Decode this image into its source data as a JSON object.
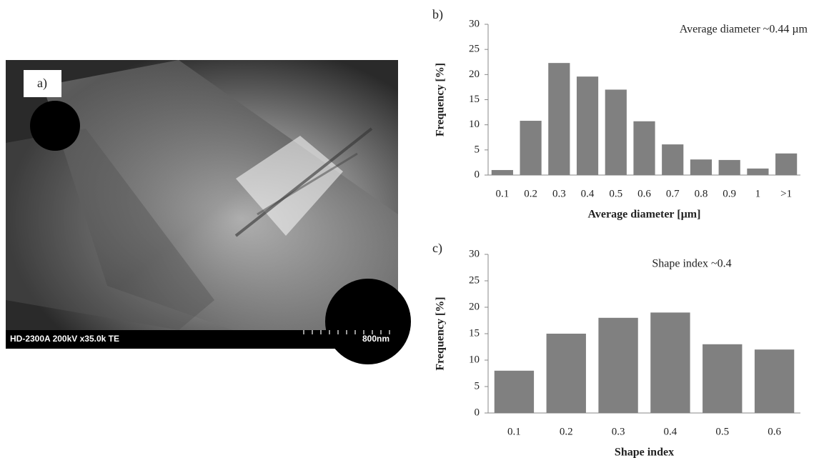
{
  "panel_a": {
    "label": "a)",
    "info": "HD-2300A  200kV  x35.0k  TE",
    "scale": "800nm"
  },
  "chart_data": [
    {
      "type": "bar",
      "panel_label": "b)",
      "annotation": "Average diameter ~0.44 µm",
      "y_label": "Frequency [%]",
      "x_label": "Average diameter [µm]",
      "categories": [
        "0.1",
        "0.2",
        "0.3",
        "0.4",
        "0.5",
        "0.6",
        "0.7",
        "0.8",
        "0.9",
        "1",
        ">1"
      ],
      "values": [
        1,
        10.8,
        22.3,
        19.6,
        17,
        10.7,
        6.1,
        3.1,
        3,
        1.3,
        4.3
      ],
      "color": "#808080",
      "ylim": [
        0,
        30
      ],
      "yticks": [
        0,
        5,
        10,
        15,
        20,
        25,
        30
      ]
    },
    {
      "type": "bar",
      "panel_label": "c)",
      "annotation": "Shape index ~0.4",
      "y_label": "Frequency [%]",
      "x_label": "Shape index",
      "categories": [
        "0.1",
        "0.2",
        "0.3",
        "0.4",
        "0.5",
        "0.6"
      ],
      "values": [
        8,
        15,
        18,
        19,
        13,
        12
      ],
      "color": "#808080",
      "ylim": [
        0,
        30
      ],
      "yticks": [
        0,
        5,
        10,
        15,
        20,
        25,
        30
      ]
    }
  ]
}
